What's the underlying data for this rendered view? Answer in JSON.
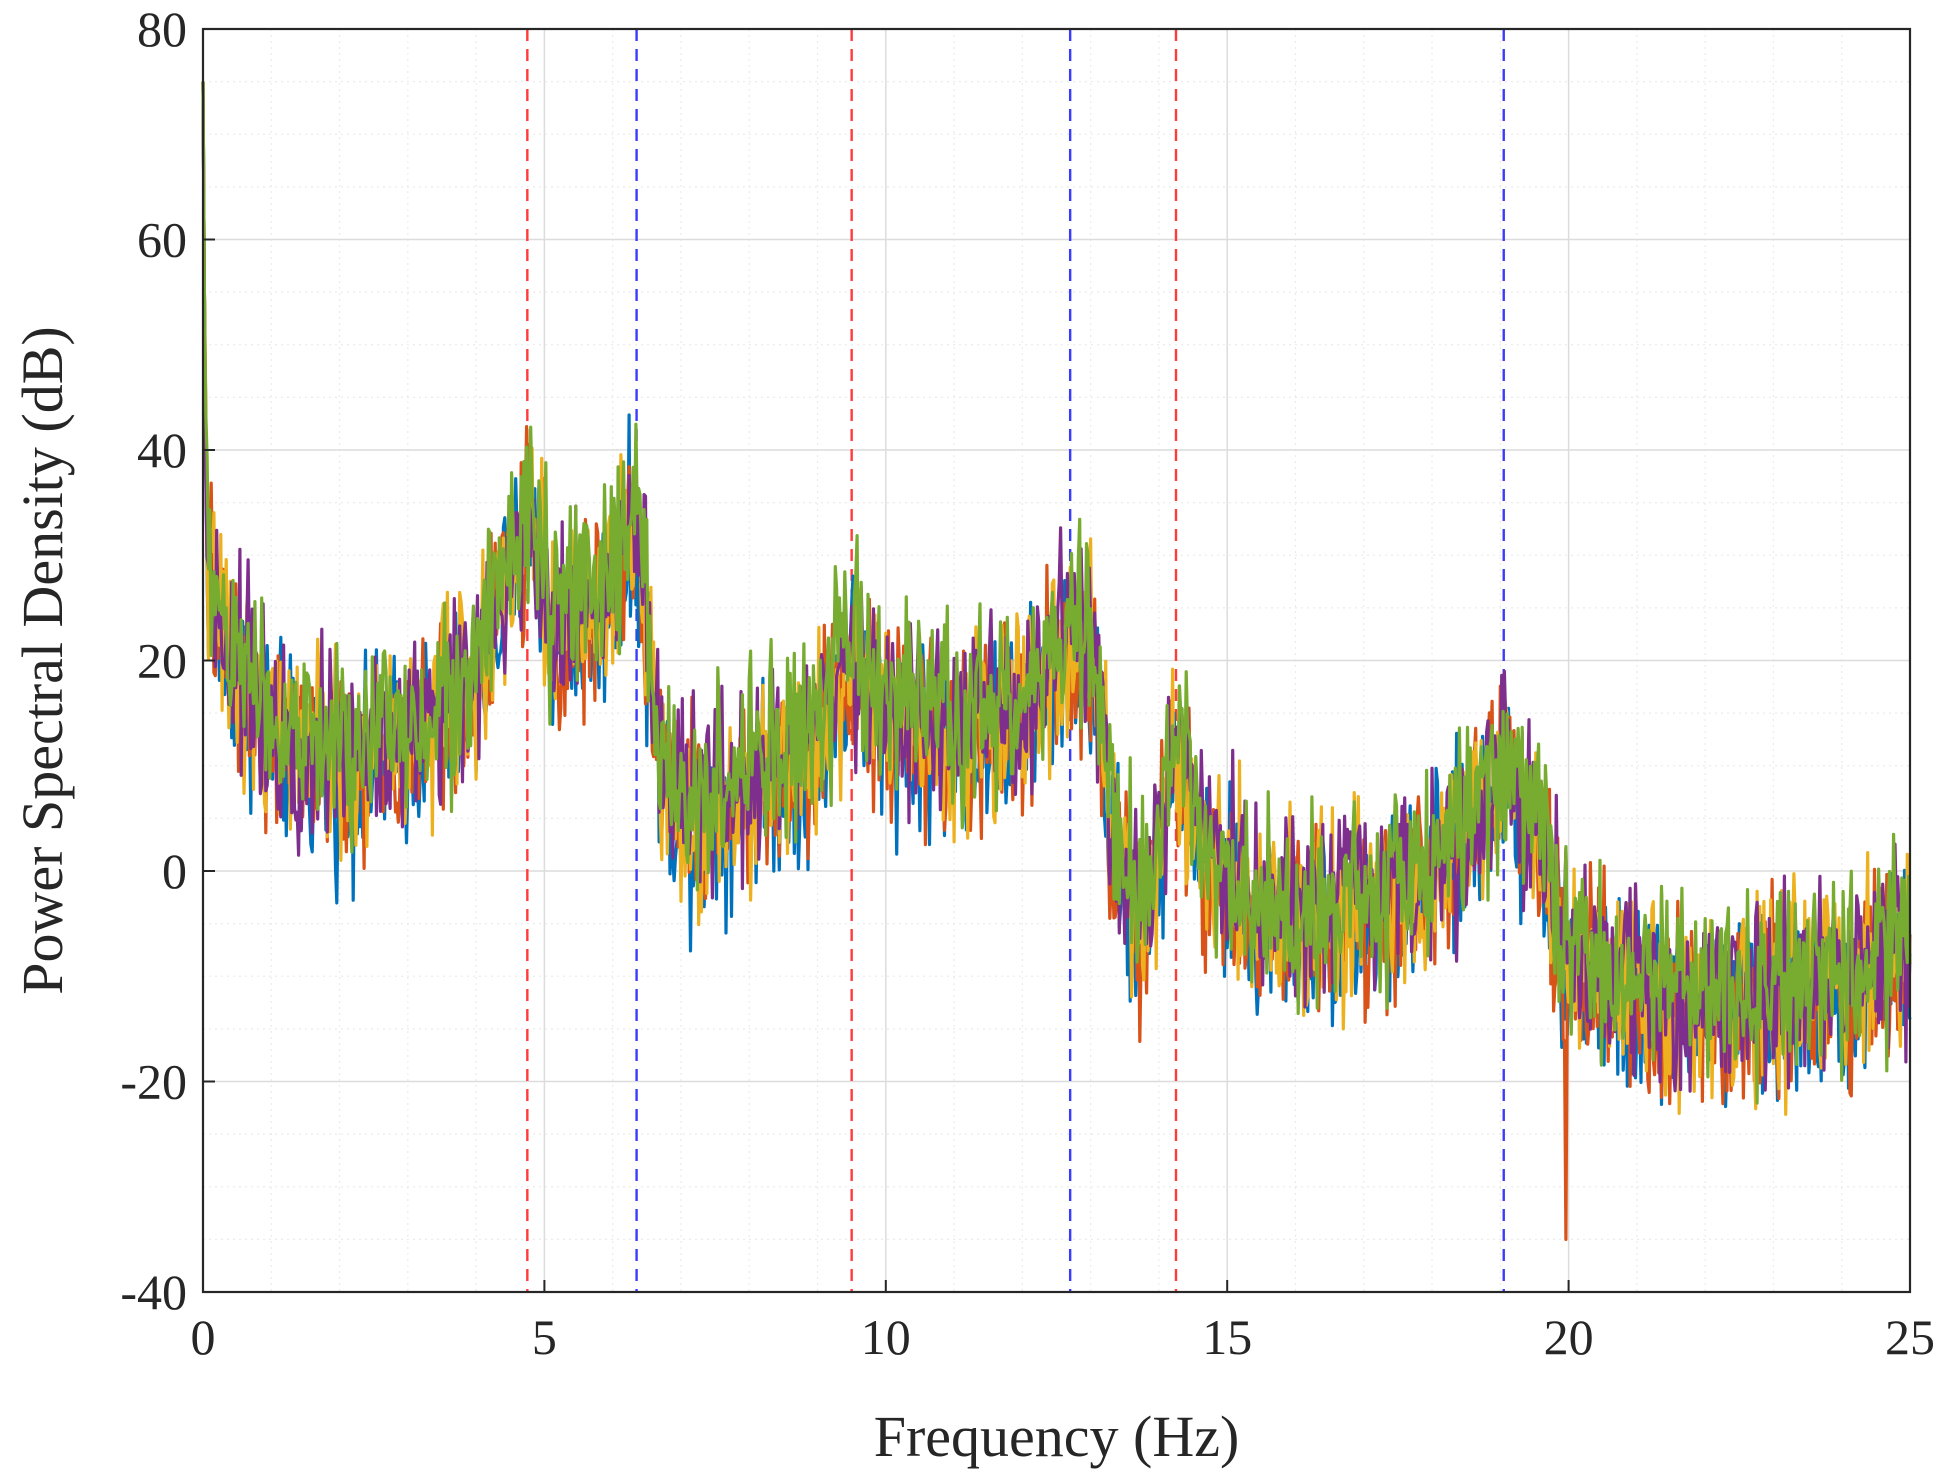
{
  "chart_data": {
    "type": "line",
    "xlabel": "Frequency (Hz)",
    "ylabel": "Power Spectral Density (dB)",
    "xlim": [
      0,
      25
    ],
    "ylim": [
      -40,
      80
    ],
    "xticks": [
      0,
      5,
      10,
      15,
      20,
      25
    ],
    "yticks": [
      -40,
      -20,
      0,
      20,
      40,
      60,
      80
    ],
    "xtick_labels": [
      "0",
      "5",
      "10",
      "15",
      "20",
      "25"
    ],
    "ytick_labels": [
      "-40",
      "-20",
      "0",
      "20",
      "40",
      "60",
      "80"
    ],
    "grid": true,
    "minor_grid": true,
    "legend": "none",
    "vertical_lines": [
      {
        "x": 4.75,
        "color": "#ff3b3b"
      },
      {
        "x": 6.35,
        "color": "#3b3bff"
      },
      {
        "x": 9.5,
        "color": "#ff3b3b"
      },
      {
        "x": 12.7,
        "color": "#3b3bff"
      },
      {
        "x": 14.25,
        "color": "#ff3b3b"
      },
      {
        "x": 19.05,
        "color": "#3b3bff"
      }
    ],
    "series_colors": [
      "#0072BD",
      "#D95319",
      "#EDB120",
      "#7E2F8E",
      "#77AC30"
    ],
    "envelope": [
      {
        "x": 0.0,
        "y": 75
      },
      {
        "x": 0.05,
        "y": 30
      },
      {
        "x": 0.3,
        "y": 22
      },
      {
        "x": 0.8,
        "y": 16
      },
      {
        "x": 1.3,
        "y": 12
      },
      {
        "x": 2.0,
        "y": 10
      },
      {
        "x": 3.0,
        "y": 13
      },
      {
        "x": 4.0,
        "y": 18
      },
      {
        "x": 4.75,
        "y": 34
      },
      {
        "x": 5.1,
        "y": 24
      },
      {
        "x": 5.8,
        "y": 25
      },
      {
        "x": 6.35,
        "y": 33
      },
      {
        "x": 6.7,
        "y": 10
      },
      {
        "x": 7.2,
        "y": 5
      },
      {
        "x": 8.0,
        "y": 9
      },
      {
        "x": 9.0,
        "y": 12
      },
      {
        "x": 9.5,
        "y": 21
      },
      {
        "x": 10.0,
        "y": 15
      },
      {
        "x": 11.0,
        "y": 13
      },
      {
        "x": 12.0,
        "y": 15
      },
      {
        "x": 12.7,
        "y": 22
      },
      {
        "x": 13.05,
        "y": 21
      },
      {
        "x": 13.3,
        "y": 3
      },
      {
        "x": 13.8,
        "y": -5
      },
      {
        "x": 14.25,
        "y": 12
      },
      {
        "x": 14.6,
        "y": 2
      },
      {
        "x": 15.5,
        "y": -4
      },
      {
        "x": 16.5,
        "y": -4
      },
      {
        "x": 17.5,
        "y": -3
      },
      {
        "x": 18.3,
        "y": 2
      },
      {
        "x": 19.05,
        "y": 10
      },
      {
        "x": 19.6,
        "y": 4
      },
      {
        "x": 19.9,
        "y": -8
      },
      {
        "x": 21.0,
        "y": -12
      },
      {
        "x": 22.0,
        "y": -12
      },
      {
        "x": 23.0,
        "y": -12
      },
      {
        "x": 24.0,
        "y": -11
      },
      {
        "x": 25.0,
        "y": -7
      }
    ],
    "notes_spikes": [
      {
        "x": 19.95,
        "y": -35
      }
    ]
  }
}
